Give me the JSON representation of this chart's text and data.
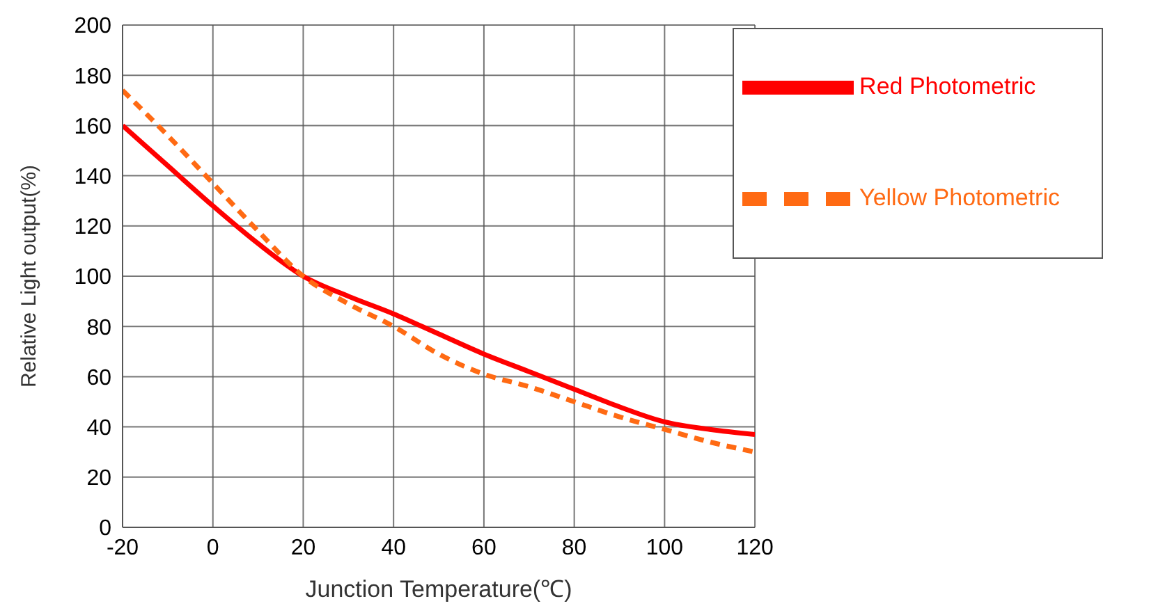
{
  "chart_data": {
    "type": "line",
    "xlabel": "Junction Temperature(℃)",
    "ylabel": "Relative Light output(%)",
    "x": [
      -20,
      -10,
      0,
      10,
      20,
      30,
      40,
      50,
      60,
      70,
      80,
      90,
      100,
      110,
      120
    ],
    "series": [
      {
        "name": "Red Photometric",
        "color": "#ff0000",
        "line_style": "solid",
        "values": [
          160,
          144,
          128,
          113,
          100,
          92,
          85,
          77,
          69,
          62,
          55,
          48,
          42,
          39,
          37
        ]
      },
      {
        "name": "Yellow Photometric",
        "color": "#ff6a13",
        "line_style": "dashed",
        "values": [
          174,
          156,
          137,
          118,
          100,
          89,
          80,
          69,
          61,
          56,
          50,
          44,
          39,
          34,
          30
        ]
      }
    ],
    "xlim": [
      -20,
      120
    ],
    "xticks": [
      -20,
      0,
      20,
      40,
      60,
      80,
      100,
      120
    ],
    "ylim": [
      0,
      200
    ],
    "yticks": [
      0,
      20,
      40,
      60,
      80,
      100,
      120,
      140,
      160,
      180,
      200
    ],
    "grid": true,
    "legend": "top right",
    "marker": "none"
  }
}
